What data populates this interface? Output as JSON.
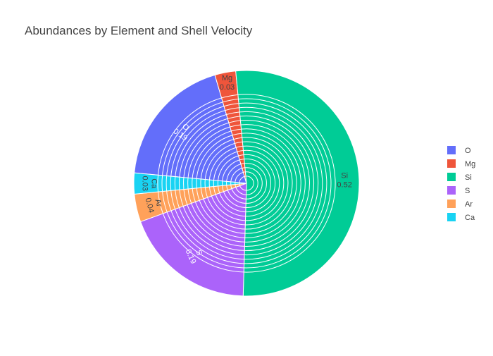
{
  "chart_data": {
    "type": "pie",
    "title": "Abundances by Element and Shell Velocity",
    "categories": [
      "O",
      "Mg",
      "Si",
      "S",
      "Ar",
      "Ca"
    ],
    "values": [
      0.19,
      0.03,
      0.52,
      0.19,
      0.04,
      0.03
    ],
    "colors": [
      "#636efa",
      "#ef553b",
      "#00cc96",
      "#ab63fa",
      "#ffa15a",
      "#19d3f3"
    ],
    "legend": {
      "placement": "right",
      "entries": [
        "O",
        "Mg",
        "Si",
        "S",
        "Ar",
        "Ca"
      ]
    },
    "shell_rings": 20
  }
}
